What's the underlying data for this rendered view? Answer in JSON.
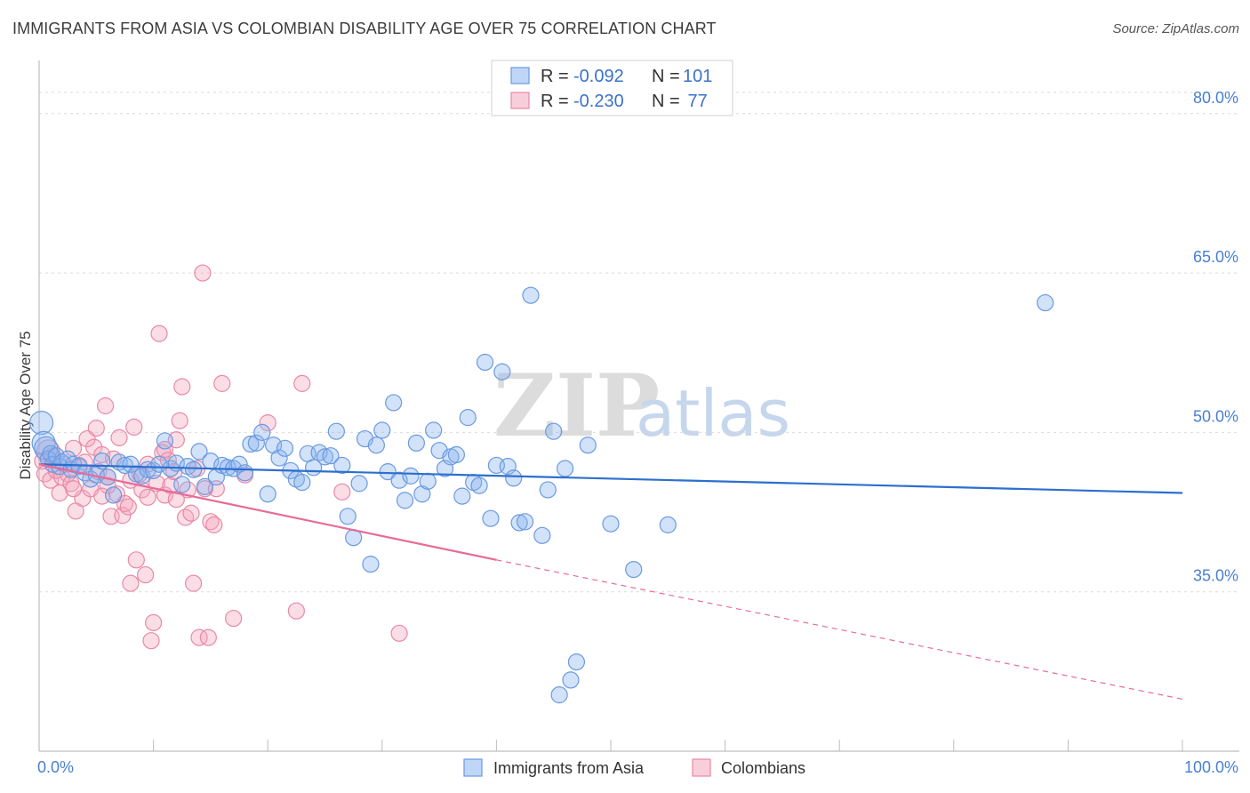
{
  "title": "IMMIGRANTS FROM ASIA VS COLOMBIAN DISABILITY AGE OVER 75 CORRELATION CHART",
  "source": "Source: ZipAtlas.com",
  "watermark": {
    "zip": "ZIP",
    "atlas": "atlas"
  },
  "chart_data": {
    "type": "scatter",
    "ylabel": "Disability Age Over 75",
    "xlim": [
      0,
      100
    ],
    "ylim": [
      20,
      85
    ],
    "x_tick_labels": [
      {
        "value": 0,
        "label": "0.0%"
      },
      {
        "value": 100,
        "label": "100.0%"
      }
    ],
    "y_ticks": [
      {
        "value": 35,
        "label": "35.0%"
      },
      {
        "value": 50,
        "label": "50.0%"
      },
      {
        "value": 65,
        "label": "65.0%"
      },
      {
        "value": 80,
        "label": "80.0%"
      }
    ],
    "legend": {
      "rows": [
        {
          "r_label": "R = ",
          "r_value": "-0.092",
          "n_label": "N = ",
          "n_value": "101",
          "color": "#8ab4f0"
        },
        {
          "r_label": "R = ",
          "r_value": "-0.230",
          "n_label": "N = ",
          "n_value": " 77",
          "color": "#f4a6be"
        }
      ]
    },
    "series": [
      {
        "name": "Immigrants from Asia",
        "color": "#8ab4f0",
        "stroke": "#6a9ae0",
        "trend": {
          "x0": 0,
          "y0": 47.0,
          "x1": 100,
          "y1": 44.3,
          "color": "#2c6fcf"
        },
        "points": [
          [
            0.2,
            50.9
          ],
          [
            0.4,
            49.0
          ],
          [
            0.6,
            48.5
          ],
          [
            0.8,
            47.5
          ],
          [
            1.0,
            48.0
          ],
          [
            1.2,
            47.0
          ],
          [
            1.5,
            47.8
          ],
          [
            1.8,
            46.8
          ],
          [
            2.0,
            47.2
          ],
          [
            2.5,
            47.5
          ],
          [
            2.8,
            46.5
          ],
          [
            3.0,
            47.0
          ],
          [
            3.5,
            46.8
          ],
          [
            4.0,
            46.2
          ],
          [
            4.5,
            45.6
          ],
          [
            5.0,
            46.0
          ],
          [
            5.5,
            47.3
          ],
          [
            6.0,
            45.8
          ],
          [
            6.5,
            44.1
          ],
          [
            7.0,
            47.2
          ],
          [
            7.5,
            46.9
          ],
          [
            8.0,
            47.0
          ],
          [
            8.5,
            46.1
          ],
          [
            9.0,
            45.9
          ],
          [
            9.5,
            46.5
          ],
          [
            10.0,
            46.4
          ],
          [
            10.5,
            47.0
          ],
          [
            11.0,
            49.2
          ],
          [
            11.5,
            46.6
          ],
          [
            12.0,
            47.1
          ],
          [
            12.5,
            45.1
          ],
          [
            13.0,
            46.8
          ],
          [
            13.5,
            46.5
          ],
          [
            14.0,
            48.2
          ],
          [
            14.5,
            44.9
          ],
          [
            15.0,
            47.3
          ],
          [
            15.5,
            45.8
          ],
          [
            16.0,
            46.9
          ],
          [
            16.5,
            46.7
          ],
          [
            17.0,
            46.6
          ],
          [
            17.5,
            47.0
          ],
          [
            18.0,
            46.2
          ],
          [
            18.5,
            48.9
          ],
          [
            19.0,
            49.0
          ],
          [
            19.5,
            50.0
          ],
          [
            20.0,
            44.2
          ],
          [
            20.5,
            48.8
          ],
          [
            21.0,
            47.6
          ],
          [
            21.5,
            48.5
          ],
          [
            22.0,
            46.4
          ],
          [
            22.5,
            45.6
          ],
          [
            23.0,
            45.3
          ],
          [
            23.5,
            48.0
          ],
          [
            24.0,
            46.7
          ],
          [
            24.5,
            48.1
          ],
          [
            25.0,
            47.7
          ],
          [
            25.5,
            47.8
          ],
          [
            26.0,
            50.1
          ],
          [
            26.5,
            46.9
          ],
          [
            27.0,
            42.1
          ],
          [
            27.5,
            40.1
          ],
          [
            28.0,
            45.2
          ],
          [
            28.5,
            49.4
          ],
          [
            29.0,
            37.6
          ],
          [
            29.5,
            48.8
          ],
          [
            30.0,
            50.2
          ],
          [
            30.5,
            46.3
          ],
          [
            31.0,
            52.8
          ],
          [
            31.5,
            45.5
          ],
          [
            32.0,
            43.6
          ],
          [
            32.5,
            45.9
          ],
          [
            33.0,
            49.0
          ],
          [
            33.5,
            44.2
          ],
          [
            34.0,
            45.4
          ],
          [
            34.5,
            50.2
          ],
          [
            35.0,
            48.3
          ],
          [
            35.5,
            46.6
          ],
          [
            36.0,
            47.7
          ],
          [
            36.5,
            47.9
          ],
          [
            37.0,
            44.0
          ],
          [
            37.5,
            51.4
          ],
          [
            38.0,
            45.3
          ],
          [
            38.5,
            45.0
          ],
          [
            39.0,
            56.6
          ],
          [
            39.5,
            41.9
          ],
          [
            40.0,
            46.9
          ],
          [
            40.5,
            55.7
          ],
          [
            41.0,
            46.8
          ],
          [
            41.5,
            45.7
          ],
          [
            42.0,
            41.5
          ],
          [
            42.5,
            41.6
          ],
          [
            43.0,
            62.9
          ],
          [
            44.0,
            40.3
          ],
          [
            44.5,
            44.6
          ],
          [
            45.0,
            50.1
          ],
          [
            46.0,
            46.6
          ],
          [
            47.0,
            28.4
          ],
          [
            48.0,
            48.8
          ],
          [
            50.0,
            41.4
          ],
          [
            52.0,
            37.1
          ],
          [
            55.0,
            41.3
          ],
          [
            88.0,
            62.2
          ],
          [
            45.5,
            25.3
          ],
          [
            46.5,
            26.7
          ]
        ]
      },
      {
        "name": "Colombians",
        "color": "#f4a6be",
        "stroke": "#e889a7",
        "trend": {
          "x0": 0,
          "y0": 47.0,
          "x1": 40,
          "y1": 38.0,
          "color": "#e86a96"
        },
        "trend_dashed": {
          "x0": 40,
          "y0": 38.0,
          "x1": 100,
          "y1": 24.9,
          "color": "#e86a96"
        },
        "points": [
          [
            0.3,
            47.3
          ],
          [
            0.5,
            46.1
          ],
          [
            0.8,
            48.2
          ],
          [
            1.0,
            45.5
          ],
          [
            1.2,
            47.8
          ],
          [
            1.5,
            46.4
          ],
          [
            1.8,
            44.3
          ],
          [
            2.0,
            45.8
          ],
          [
            2.2,
            47.0
          ],
          [
            2.5,
            46.1
          ],
          [
            2.8,
            45.2
          ],
          [
            3.0,
            48.5
          ],
          [
            3.2,
            42.6
          ],
          [
            3.5,
            46.9
          ],
          [
            3.8,
            43.8
          ],
          [
            4.0,
            47.2
          ],
          [
            4.2,
            49.4
          ],
          [
            4.5,
            44.7
          ],
          [
            4.8,
            48.6
          ],
          [
            5.0,
            50.4
          ],
          [
            5.2,
            46.3
          ],
          [
            5.5,
            47.9
          ],
          [
            5.8,
            52.5
          ],
          [
            6.0,
            45.0
          ],
          [
            6.3,
            42.1
          ],
          [
            6.5,
            47.5
          ],
          [
            6.8,
            44.2
          ],
          [
            7.0,
            49.5
          ],
          [
            7.3,
            42.2
          ],
          [
            7.5,
            43.3
          ],
          [
            7.8,
            43.0
          ],
          [
            8.0,
            45.5
          ],
          [
            8.3,
            50.5
          ],
          [
            8.5,
            38.0
          ],
          [
            8.8,
            46.1
          ],
          [
            9.0,
            44.6
          ],
          [
            9.3,
            36.6
          ],
          [
            9.5,
            43.9
          ],
          [
            9.8,
            30.4
          ],
          [
            10.0,
            32.1
          ],
          [
            10.3,
            45.2
          ],
          [
            10.5,
            59.3
          ],
          [
            10.8,
            48.1
          ],
          [
            11.0,
            44.1
          ],
          [
            11.3,
            47.4
          ],
          [
            11.5,
            45.0
          ],
          [
            11.8,
            46.3
          ],
          [
            12.0,
            49.3
          ],
          [
            12.3,
            51.1
          ],
          [
            12.5,
            54.3
          ],
          [
            12.8,
            42.0
          ],
          [
            13.0,
            44.6
          ],
          [
            13.3,
            42.4
          ],
          [
            13.5,
            35.8
          ],
          [
            13.8,
            46.6
          ],
          [
            14.0,
            30.7
          ],
          [
            14.3,
            65.0
          ],
          [
            14.5,
            44.7
          ],
          [
            14.8,
            30.7
          ],
          [
            15.0,
            41.6
          ],
          [
            15.3,
            41.3
          ],
          [
            15.5,
            44.7
          ],
          [
            16.0,
            54.6
          ],
          [
            17.0,
            32.5
          ],
          [
            18.0,
            46.0
          ],
          [
            20.0,
            50.9
          ],
          [
            22.5,
            33.2
          ],
          [
            23.0,
            54.6
          ],
          [
            26.5,
            44.4
          ],
          [
            31.5,
            31.1
          ],
          [
            8.0,
            35.8
          ],
          [
            6.0,
            45.8
          ],
          [
            5.5,
            44.0
          ],
          [
            3.0,
            44.7
          ],
          [
            9.5,
            47.0
          ],
          [
            11.0,
            48.4
          ],
          [
            12.0,
            43.7
          ]
        ]
      }
    ]
  }
}
